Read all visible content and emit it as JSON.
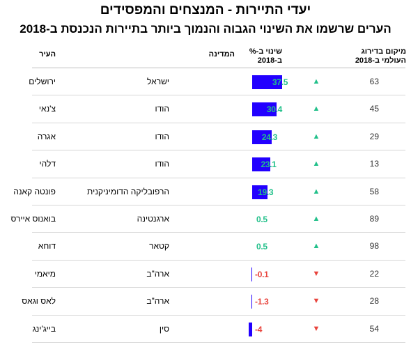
{
  "title": "יעדי התיירות - המנצחים והמפסידים",
  "subtitle": "הערים שרשמו את השינוי הגבוה והנמוך ביותר בתיירות הנכנסת ב-2018",
  "headers": {
    "city": "העיר",
    "country": "המדינה",
    "change_line1": "שינוי ב-%",
    "change_line2": "ב-2018",
    "rank_line1": "מיקום בדירוג",
    "rank_line2": "העולמי ב-2018"
  },
  "colors": {
    "bar": "#2200ff",
    "positive": "#22c08a",
    "negative": "#e8433c"
  },
  "chart_data": {
    "type": "table",
    "columns": [
      "העיר",
      "המדינה",
      "שינוי ב-% ב-2018",
      "מיקום בדירוג העולמי ב-2018"
    ],
    "rows": [
      {
        "city": "ירושלים",
        "country": "ישראל",
        "change": 37.5,
        "change_label": "37.5",
        "direction": "up",
        "arrow": "▲",
        "rank": "63"
      },
      {
        "city": "צ'נאי",
        "country": "הודו",
        "change": 30.4,
        "change_label": "30.4",
        "direction": "up",
        "arrow": "▲",
        "rank": "45"
      },
      {
        "city": "אגרה",
        "country": "הודו",
        "change": 24.3,
        "change_label": "24.3",
        "direction": "up",
        "arrow": "▲",
        "rank": "29"
      },
      {
        "city": "דלהי",
        "country": "הודו",
        "change": 23.1,
        "change_label": "23.1",
        "direction": "up",
        "arrow": "▲",
        "rank": "13"
      },
      {
        "city": "פונטה קאנה",
        "country": "הרפובליקה הדומיניקנית",
        "change": 19.3,
        "change_label": "19.3",
        "direction": "up",
        "arrow": "▲",
        "rank": "58"
      },
      {
        "city": "בואנוס איירס",
        "country": "ארגנטינה",
        "change": 0.5,
        "change_label": "0.5",
        "direction": "up",
        "arrow": "▲",
        "rank": "89"
      },
      {
        "city": "דוחא",
        "country": "קטאר",
        "change": 0.5,
        "change_label": "0.5",
        "direction": "up",
        "arrow": "▲",
        "rank": "98"
      },
      {
        "city": "מיאמי",
        "country": "ארה\"ב",
        "change": -0.1,
        "change_label": "-0.1",
        "direction": "down",
        "arrow": "▼",
        "rank": "22"
      },
      {
        "city": "לאס וגאס",
        "country": "ארה\"ב",
        "change": -1.3,
        "change_label": "-1.3",
        "direction": "down",
        "arrow": "▼",
        "rank": "28"
      },
      {
        "city": "בייג'ינג",
        "country": "סין",
        "change": -4,
        "change_label": "-4",
        "direction": "down",
        "arrow": "▼",
        "rank": "54"
      }
    ]
  }
}
